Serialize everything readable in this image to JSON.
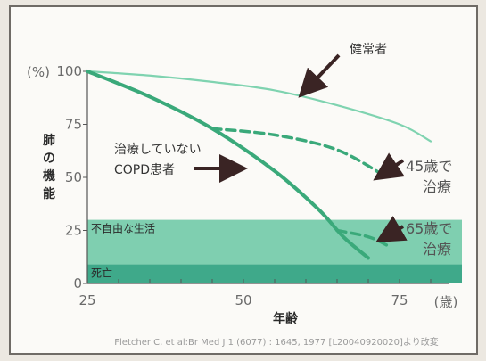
{
  "chart_data": {
    "type": "line",
    "y_unit": "(%)",
    "x_unit": "(歳)",
    "xlabel": "年齢",
    "ylabel": [
      "肺",
      "の",
      "機",
      "能"
    ],
    "xlim": [
      25,
      85
    ],
    "ylim": [
      0,
      100
    ],
    "x_ticks": [
      "25",
      "50",
      "75"
    ],
    "y_ticks": [
      "100",
      "75",
      "50",
      "25",
      "0"
    ],
    "zones": [
      {
        "label": "不自由な生活",
        "from": 9,
        "to": 30,
        "color": "#7fcfb0"
      },
      {
        "label": "死亡",
        "from": 0,
        "to": 9,
        "color": "#3fa98a"
      }
    ],
    "series": [
      {
        "name": "健常者",
        "style": "solid-light",
        "color": "#7fd3b0",
        "points": [
          [
            25,
            100
          ],
          [
            35,
            98
          ],
          [
            45,
            95
          ],
          [
            55,
            91
          ],
          [
            65,
            84
          ],
          [
            75,
            75
          ],
          [
            80,
            67
          ]
        ]
      },
      {
        "name": "治療していないCOPD患者",
        "style": "solid",
        "color": "#3aa97a",
        "points": [
          [
            25,
            100
          ],
          [
            35,
            88
          ],
          [
            45,
            73
          ],
          [
            55,
            53
          ],
          [
            62,
            35
          ],
          [
            66,
            22
          ],
          [
            70,
            12
          ]
        ]
      },
      {
        "name": "45歳で治療",
        "style": "dashed",
        "color": "#3aa97a",
        "points": [
          [
            45,
            73
          ],
          [
            55,
            70
          ],
          [
            65,
            63
          ],
          [
            73,
            50
          ]
        ]
      },
      {
        "name": "65歳で治療",
        "style": "dashed",
        "color": "#3aa97a",
        "points": [
          [
            65,
            25
          ],
          [
            70,
            22
          ],
          [
            73,
            18
          ]
        ]
      }
    ],
    "annotations": {
      "healthy": "健常者",
      "copd_line1": "治療していない",
      "copd_line2": "COPD患者",
      "t45_line1": "45歳で",
      "t45_line2": "治療",
      "t65_line1": "65歳で",
      "t65_line2": "治療"
    },
    "source": "Fletcher C, et al:Br Med J 1 (6077) : 1645, 1977 [L20040920020]より改変"
  },
  "colors": {
    "axis": "#555555",
    "arrow": "#3a2424"
  }
}
